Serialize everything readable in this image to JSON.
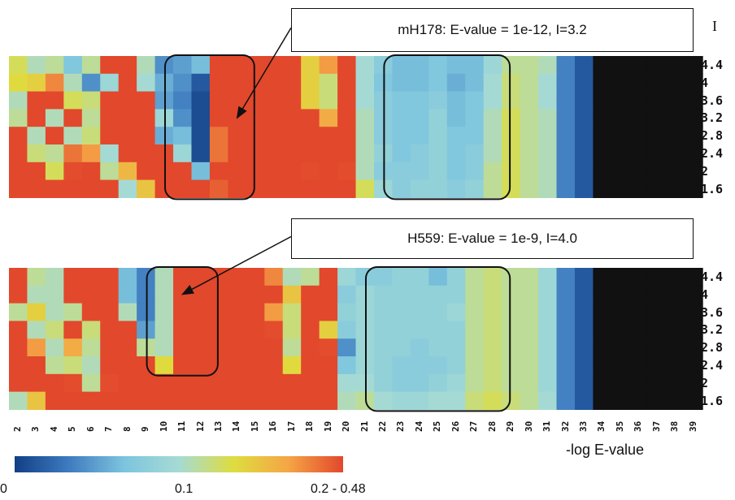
{
  "corner_label": "I",
  "legend": {
    "title": "-log E-value",
    "tick_labels": [
      "0",
      "0.1",
      "0.2 - 0.48"
    ]
  },
  "chart_data": {
    "type": "heatmap",
    "xlabel": "",
    "ylabel": "",
    "x_tick_labels": [
      "2",
      "3",
      "4",
      "5",
      "6",
      "7",
      "8",
      "9",
      "10",
      "11",
      "12",
      "13",
      "14",
      "15",
      "16",
      "17",
      "18",
      "19",
      "20",
      "21",
      "22",
      "23",
      "24",
      "25",
      "26",
      "27",
      "28",
      "29",
      "30",
      "31",
      "32",
      "33",
      "34",
      "35",
      "36",
      "37",
      "38",
      "39"
    ],
    "y_tick_labels": [
      "4.4",
      "4",
      "3.6",
      "3.2",
      "2.8",
      "2.4",
      "2",
      "1.6"
    ],
    "color_scale": {
      "min": 0,
      "max": 0.48,
      "stops": [
        "#123f86",
        "#3f7cc0",
        "#7cc4de",
        "#a6dbd4",
        "#dedd3f",
        "#f5a546",
        "#e2482c"
      ]
    },
    "panels": [
      {
        "annotation": "mH178: E-value = 1e-12, I=3.2",
        "boxes": [
          {
            "cols": [
              9,
              12
            ],
            "rows": [
              0,
              7
            ]
          },
          {
            "cols": [
              21,
              26
            ],
            "rows": [
              0,
              7
            ]
          }
        ],
        "arrow_target": {
          "col": 12,
          "row": 3
        },
        "values": [
          [
            0.18,
            0.15,
            0.16,
            0.1,
            0.16,
            0.48,
            0.48,
            0.15,
            0.06,
            0.07,
            0.09,
            0.48,
            0.48,
            0.48,
            0.48,
            0.48,
            0.2,
            0.24,
            0.48,
            0.14,
            0.11,
            0.09,
            0.09,
            0.1,
            0.09,
            0.09,
            0.13,
            0.16,
            0.16,
            0.15,
            0.05,
            0.02,
            0.0,
            0.0,
            0.0,
            0.0,
            0.0,
            0.0
          ],
          [
            0.19,
            0.2,
            0.25,
            0.15,
            0.06,
            0.13,
            0.48,
            0.14,
            0.08,
            0.06,
            0.02,
            0.48,
            0.48,
            0.48,
            0.48,
            0.48,
            0.2,
            0.17,
            0.48,
            0.14,
            0.1,
            0.09,
            0.09,
            0.1,
            0.08,
            0.09,
            0.14,
            0.17,
            0.16,
            0.14,
            0.05,
            0.02,
            0.0,
            0.0,
            0.0,
            0.0,
            0.0,
            0.0
          ],
          [
            0.15,
            0.48,
            0.48,
            0.18,
            0.17,
            0.48,
            0.48,
            0.48,
            0.07,
            0.05,
            0.01,
            0.48,
            0.48,
            0.48,
            0.48,
            0.48,
            0.2,
            0.17,
            0.48,
            0.14,
            0.11,
            0.1,
            0.1,
            0.11,
            0.09,
            0.1,
            0.14,
            0.17,
            0.16,
            0.14,
            0.05,
            0.02,
            0.0,
            0.0,
            0.0,
            0.0,
            0.0,
            0.0
          ],
          [
            0.16,
            0.48,
            0.15,
            0.48,
            0.16,
            0.48,
            0.48,
            0.48,
            0.13,
            0.06,
            0.01,
            0.48,
            0.48,
            0.48,
            0.48,
            0.48,
            0.48,
            0.23,
            0.48,
            0.15,
            0.11,
            0.1,
            0.1,
            0.12,
            0.09,
            0.1,
            0.15,
            0.18,
            0.16,
            0.15,
            0.05,
            0.02,
            0.0,
            0.0,
            0.0,
            0.0,
            0.0,
            0.0
          ],
          [
            0.48,
            0.15,
            0.48,
            0.15,
            0.17,
            0.48,
            0.48,
            0.48,
            0.08,
            0.09,
            0.01,
            0.26,
            0.48,
            0.48,
            0.48,
            0.48,
            0.48,
            0.48,
            0.48,
            0.15,
            0.11,
            0.1,
            0.1,
            0.12,
            0.1,
            0.1,
            0.15,
            0.18,
            0.16,
            0.15,
            0.05,
            0.02,
            0.0,
            0.0,
            0.0,
            0.0,
            0.0,
            0.0
          ],
          [
            0.48,
            0.17,
            0.16,
            0.26,
            0.24,
            0.14,
            0.48,
            0.48,
            0.48,
            0.13,
            0.01,
            0.26,
            0.48,
            0.48,
            0.48,
            0.48,
            0.48,
            0.48,
            0.48,
            0.15,
            0.12,
            0.1,
            0.11,
            0.12,
            0.1,
            0.11,
            0.15,
            0.18,
            0.16,
            0.15,
            0.05,
            0.02,
            0.0,
            0.0,
            0.0,
            0.0,
            0.0,
            0.0
          ],
          [
            0.48,
            0.48,
            0.18,
            0.28,
            0.48,
            0.16,
            0.22,
            0.48,
            0.48,
            0.48,
            0.09,
            0.48,
            0.48,
            0.48,
            0.48,
            0.48,
            0.28,
            0.48,
            0.28,
            0.15,
            0.11,
            0.11,
            0.11,
            0.12,
            0.1,
            0.11,
            0.16,
            0.18,
            0.16,
            0.15,
            0.05,
            0.02,
            0.0,
            0.0,
            0.0,
            0.0,
            0.0,
            0.0
          ],
          [
            0.48,
            0.48,
            0.48,
            0.48,
            0.48,
            0.48,
            0.14,
            0.21,
            0.48,
            0.48,
            0.48,
            0.27,
            0.48,
            0.48,
            0.48,
            0.48,
            0.48,
            0.48,
            0.48,
            0.18,
            0.13,
            0.11,
            0.12,
            0.12,
            0.11,
            0.12,
            0.16,
            0.18,
            0.16,
            0.15,
            0.05,
            0.02,
            0.0,
            0.0,
            0.0,
            0.0,
            0.0,
            0.0
          ]
        ]
      },
      {
        "annotation": "H559: E-value = 1e-9, I=4.0",
        "boxes": [
          {
            "cols": [
              8,
              10
            ],
            "rows": [
              0,
              5
            ]
          },
          {
            "cols": [
              20,
              26
            ],
            "rows": [
              0,
              7
            ]
          }
        ],
        "arrow_target": {
          "col": 9,
          "row": 1
        },
        "values": [
          [
            0.48,
            0.16,
            0.15,
            0.48,
            0.48,
            0.48,
            0.09,
            0.05,
            0.15,
            0.48,
            0.48,
            0.48,
            0.48,
            0.48,
            0.25,
            0.15,
            0.16,
            0.48,
            0.13,
            0.11,
            0.11,
            0.12,
            0.12,
            0.09,
            0.12,
            0.16,
            0.17,
            0.16,
            0.16,
            0.13,
            0.05,
            0.02,
            0.0,
            0.0,
            0.0,
            0.0,
            0.0,
            0.0
          ],
          [
            0.48,
            0.15,
            0.15,
            0.48,
            0.48,
            0.48,
            0.09,
            0.05,
            0.15,
            0.48,
            0.48,
            0.48,
            0.48,
            0.48,
            0.48,
            0.21,
            0.48,
            0.48,
            0.11,
            0.13,
            0.12,
            0.12,
            0.12,
            0.12,
            0.12,
            0.16,
            0.17,
            0.16,
            0.16,
            0.13,
            0.05,
            0.02,
            0.0,
            0.0,
            0.0,
            0.0,
            0.0,
            0.0
          ],
          [
            0.16,
            0.2,
            0.15,
            0.16,
            0.48,
            0.48,
            0.15,
            0.05,
            0.15,
            0.48,
            0.48,
            0.48,
            0.48,
            0.48,
            0.24,
            0.17,
            0.48,
            0.48,
            0.12,
            0.13,
            0.12,
            0.12,
            0.12,
            0.12,
            0.13,
            0.16,
            0.17,
            0.16,
            0.16,
            0.13,
            0.05,
            0.02,
            0.0,
            0.0,
            0.0,
            0.0,
            0.0,
            0.0
          ],
          [
            0.48,
            0.15,
            0.17,
            0.48,
            0.17,
            0.48,
            0.48,
            0.07,
            0.15,
            0.48,
            0.48,
            0.48,
            0.48,
            0.48,
            0.28,
            0.17,
            0.48,
            0.2,
            0.11,
            0.13,
            0.12,
            0.12,
            0.12,
            0.12,
            0.12,
            0.16,
            0.17,
            0.16,
            0.16,
            0.13,
            0.05,
            0.02,
            0.0,
            0.0,
            0.0,
            0.0,
            0.0,
            0.0
          ],
          [
            0.48,
            0.24,
            0.15,
            0.23,
            0.16,
            0.48,
            0.48,
            0.16,
            0.15,
            0.48,
            0.48,
            0.48,
            0.48,
            0.48,
            0.48,
            0.16,
            0.48,
            0.28,
            0.06,
            0.13,
            0.12,
            0.12,
            0.11,
            0.12,
            0.12,
            0.16,
            0.17,
            0.16,
            0.16,
            0.13,
            0.05,
            0.02,
            0.0,
            0.0,
            0.0,
            0.0,
            0.0,
            0.0
          ],
          [
            0.48,
            0.48,
            0.16,
            0.17,
            0.15,
            0.48,
            0.48,
            0.48,
            0.19,
            0.48,
            0.48,
            0.48,
            0.48,
            0.48,
            0.48,
            0.19,
            0.48,
            0.48,
            0.1,
            0.13,
            0.12,
            0.11,
            0.11,
            0.11,
            0.12,
            0.16,
            0.17,
            0.16,
            0.16,
            0.13,
            0.05,
            0.02,
            0.0,
            0.0,
            0.0,
            0.0,
            0.0,
            0.0
          ],
          [
            0.48,
            0.48,
            0.48,
            0.28,
            0.16,
            0.28,
            0.48,
            0.48,
            0.48,
            0.48,
            0.48,
            0.48,
            0.48,
            0.48,
            0.48,
            0.48,
            0.48,
            0.48,
            0.14,
            0.14,
            0.12,
            0.11,
            0.11,
            0.12,
            0.13,
            0.16,
            0.17,
            0.16,
            0.16,
            0.13,
            0.05,
            0.02,
            0.0,
            0.0,
            0.0,
            0.0,
            0.0,
            0.0
          ],
          [
            0.15,
            0.21,
            0.48,
            0.48,
            0.48,
            0.48,
            0.33,
            0.48,
            0.48,
            0.48,
            0.48,
            0.48,
            0.48,
            0.48,
            0.48,
            0.48,
            0.48,
            0.48,
            0.15,
            0.16,
            0.14,
            0.13,
            0.13,
            0.14,
            0.14,
            0.17,
            0.18,
            0.17,
            0.16,
            0.14,
            0.05,
            0.02,
            0.0,
            0.0,
            0.0,
            0.0,
            0.0,
            0.0
          ]
        ]
      }
    ]
  }
}
